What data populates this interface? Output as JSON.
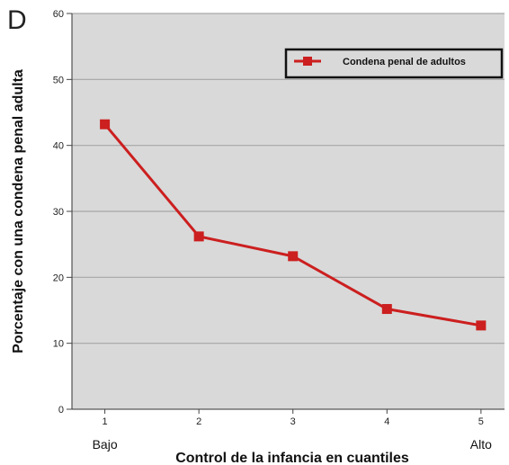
{
  "panel_label": "D",
  "chart_data": {
    "type": "line",
    "x": [
      1,
      2,
      3,
      4,
      5
    ],
    "x_tick_labels": [
      "1",
      "2",
      "3",
      "4",
      "5"
    ],
    "x_extra_labels": {
      "first": "Bajo",
      "last": "Alto"
    },
    "series": [
      {
        "name": "Condena penal de adultos",
        "values": [
          43.2,
          26.2,
          23.2,
          15.2,
          12.7
        ],
        "color": "#cc1f1f"
      }
    ],
    "xlabel": "Control de la infancia en cuantiles",
    "ylabel": "Porcentaje con una condena penal adulta",
    "ylim": [
      0,
      60
    ],
    "y_ticks": [
      0,
      10,
      20,
      30,
      40,
      50,
      60
    ],
    "grid": true,
    "legend_position": "top-right",
    "plot_background": "#d9d9d9"
  }
}
